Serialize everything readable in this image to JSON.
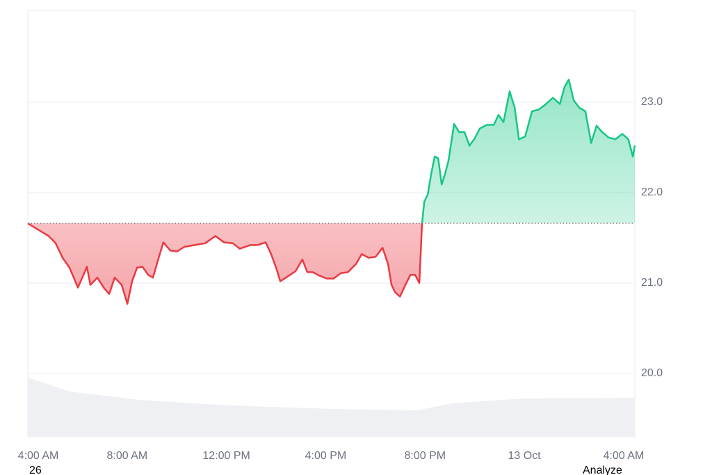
{
  "chart_data": {
    "type": "line",
    "x": [
      0,
      0.42,
      0.84,
      1.12,
      1.4,
      1.68,
      2.02,
      2.24,
      2.38,
      2.52,
      2.8,
      3.08,
      3.28,
      3.5,
      3.78,
      4.01,
      4.2,
      4.4,
      4.62,
      4.85,
      5.04,
      5.27,
      5.46,
      5.74,
      6.02,
      6.3,
      6.72,
      7.14,
      7.56,
      7.9,
      8.26,
      8.54,
      8.96,
      9.24,
      9.58,
      9.8,
      10,
      10.17,
      10.45,
      10.78,
      11.06,
      11.26,
      11.48,
      11.76,
      12.04,
      12.32,
      12.61,
      12.89,
      13.22,
      13.45,
      13.73,
      14.01,
      14.29,
      14.51,
      14.65,
      14.79,
      14.99,
      15.21,
      15.41,
      15.6,
      15.77,
      15.88,
      15.97,
      16.11,
      16.25,
      16.39,
      16.53,
      16.67,
      16.81,
      16.95,
      17.17,
      17.37,
      17.59,
      17.79,
      17.98,
      18.21,
      18.49,
      18.77,
      18.96,
      19.16,
      19.41,
      19.61,
      19.78,
      20.03,
      20.31,
      20.59,
      20.87,
      21.15,
      21.43,
      21.62,
      21.79,
      21.99,
      22.21,
      22.46,
      22.69,
      22.91,
      23.14,
      23.39,
      23.67,
      23.95,
      24.19,
      24.37,
      24.45
    ],
    "values": [
      21.66,
      21.59,
      21.52,
      21.44,
      21.28,
      21.17,
      20.95,
      21.09,
      21.18,
      20.98,
      21.06,
      20.94,
      20.88,
      21.06,
      20.98,
      20.77,
      21.02,
      21.17,
      21.18,
      21.09,
      21.06,
      21.28,
      21.45,
      21.36,
      21.35,
      21.4,
      21.42,
      21.44,
      21.52,
      21.45,
      21.44,
      21.38,
      21.42,
      21.42,
      21.45,
      21.32,
      21.17,
      21.02,
      21.07,
      21.13,
      21.26,
      21.12,
      21.12,
      21.08,
      21.05,
      21.05,
      21.11,
      21.12,
      21.21,
      21.32,
      21.28,
      21.29,
      21.39,
      21.21,
      20.98,
      20.9,
      20.85,
      20.98,
      21.09,
      21.09,
      21,
      21.66,
      21.9,
      21.98,
      22.21,
      22.4,
      22.38,
      22.09,
      22.21,
      22.36,
      22.76,
      22.67,
      22.67,
      22.52,
      22.59,
      22.71,
      22.75,
      22.75,
      22.86,
      22.78,
      23.12,
      22.94,
      22.59,
      22.62,
      22.9,
      22.92,
      22.98,
      23.05,
      22.98,
      23.17,
      23.25,
      23.02,
      22.94,
      22.9,
      22.55,
      22.74,
      22.67,
      22.61,
      22.59,
      22.65,
      22.59,
      22.4,
      22.52
    ],
    "baseline": 21.66,
    "up_color": "#16c784",
    "down_color": "#ea3943",
    "xlim": [
      0,
      24.45
    ],
    "xticks": [
      {
        "value": 0,
        "label": "4:00 AM"
      },
      {
        "value": 4,
        "label": "8:00 AM"
      },
      {
        "value": 8,
        "label": "12:00 PM"
      },
      {
        "value": 12,
        "label": "4:00 PM"
      },
      {
        "value": 16,
        "label": "8:00 PM"
      },
      {
        "value": 20,
        "label": "13 Oct"
      },
      {
        "value": 24,
        "label": "4:00 AM"
      }
    ],
    "ylim": [
      19.3,
      24.015
    ],
    "yticks": [
      {
        "value": 20,
        "label": "20.0"
      },
      {
        "value": 21,
        "label": "21.0"
      },
      {
        "value": 22,
        "label": "22.0"
      },
      {
        "value": 23,
        "label": "23.0"
      }
    ],
    "grid": true
  },
  "cropped_text": [
    "26",
    "Analyze"
  ]
}
